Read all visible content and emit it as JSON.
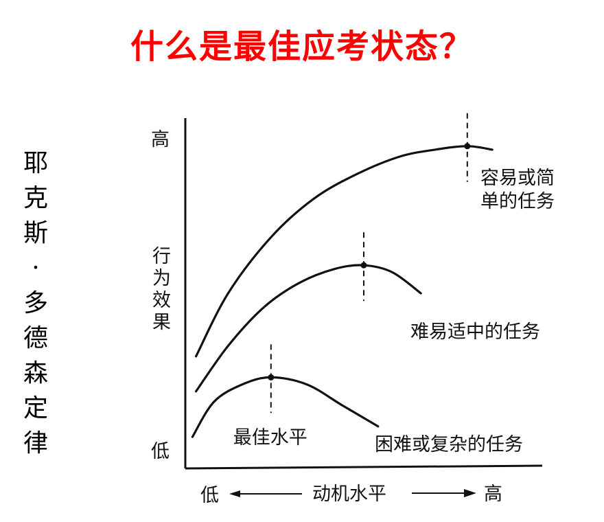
{
  "title": "什么是最佳应考状态？",
  "side_label": "耶\n克\n斯\n·\n多\n德\n森\n定\n律",
  "chart_data": {
    "type": "line",
    "title": "",
    "xlabel": "动机水平",
    "ylabel": "行为效果",
    "x_low_label": "低",
    "x_high_label": "高",
    "y_low_label": "低",
    "y_high_label": "高",
    "xlim": [
      0,
      10
    ],
    "ylim": [
      0,
      10
    ],
    "grid": false,
    "legend": "none",
    "series": [
      {
        "name": "容易或简单的任务",
        "label_lines": [
          "容易或简",
          "单的任务"
        ],
        "peak": [
          7.9,
          9.2
        ],
        "x": [
          0.3,
          1.2,
          2.4,
          3.6,
          4.8,
          6.0,
          7.0,
          7.9,
          8.6
        ],
        "y": [
          3.2,
          5.0,
          6.6,
          7.7,
          8.4,
          8.9,
          9.1,
          9.2,
          9.1
        ]
      },
      {
        "name": "难易适中的任务",
        "label_lines": [
          "难易适中的任务"
        ],
        "peak": [
          5.0,
          5.8
        ],
        "x": [
          0.3,
          1.2,
          2.2,
          3.2,
          4.2,
          5.0,
          5.8,
          6.6
        ],
        "y": [
          2.2,
          3.5,
          4.6,
          5.3,
          5.7,
          5.8,
          5.6,
          5.0
        ]
      },
      {
        "name": "困难或复杂的任务",
        "label_lines": [
          "困难或复杂的任务"
        ],
        "peak": [
          2.4,
          2.6
        ],
        "x": [
          0.2,
          0.8,
          1.6,
          2.4,
          3.4,
          4.4,
          5.4
        ],
        "y": [
          0.9,
          1.9,
          2.4,
          2.6,
          2.4,
          1.8,
          1.2
        ]
      }
    ],
    "annotations": [
      {
        "text": "最佳水平",
        "x": 2.4
      }
    ]
  }
}
